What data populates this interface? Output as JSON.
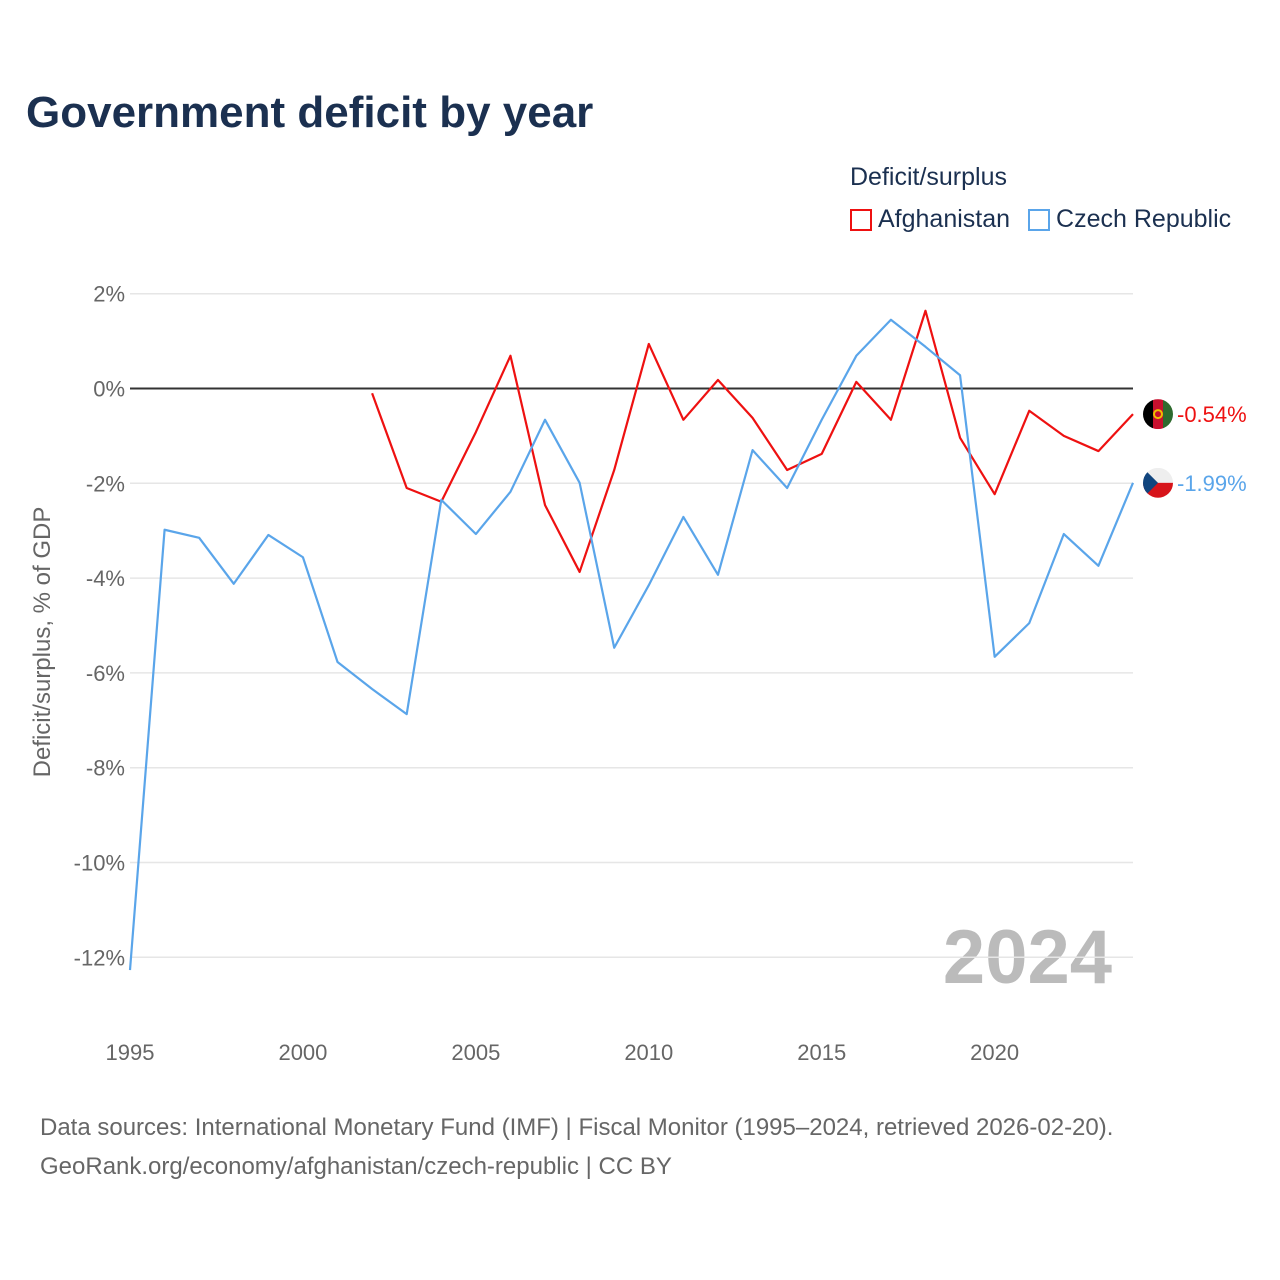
{
  "title": "Government deficit by year",
  "legend": {
    "title": "Deficit/surplus",
    "items": [
      {
        "name": "Afghanistan",
        "color": "#ee1111"
      },
      {
        "name": "Czech Republic",
        "color": "#5aa5ea"
      }
    ]
  },
  "source_line1": "Data sources: International Monetary Fund (IMF) | Fiscal Monitor (1995–2024, retrieved 2026-02-20).",
  "source_line2": "GeoRank.org/economy/afghanistan/czech-republic | CC BY",
  "chart_data": {
    "type": "line",
    "title": "Government deficit by year",
    "xlabel": "",
    "ylabel": "Deficit/surplus, % of GDP",
    "xlim": [
      1995,
      2024
    ],
    "ylim": [
      -13,
      2.2
    ],
    "x_ticks": [
      1995,
      2000,
      2005,
      2010,
      2015,
      2020
    ],
    "y_ticks": [
      2,
      0,
      -2,
      -4,
      -6,
      -8,
      -10,
      -12
    ],
    "y_tick_labels": [
      "2%",
      "0%",
      "-2%",
      "-4%",
      "-6%",
      "-8%",
      "-10%",
      "-12%"
    ],
    "grid": true,
    "watermark_year": "2024",
    "series": [
      {
        "name": "Afghanistan",
        "color": "#ee1111",
        "end_label": "-0.54%",
        "x": [
          2002,
          2003,
          2004,
          2005,
          2006,
          2007,
          2008,
          2009,
          2010,
          2011,
          2012,
          2013,
          2014,
          2015,
          2016,
          2017,
          2018,
          2019,
          2020,
          2021,
          2022,
          2023,
          2024
        ],
        "values": [
          -0.1,
          -2.1,
          -2.39,
          -0.92,
          0.69,
          -2.46,
          -3.87,
          -1.72,
          0.94,
          -0.66,
          0.18,
          -0.62,
          -1.72,
          -1.38,
          0.14,
          -0.66,
          1.64,
          -1.04,
          -2.23,
          -0.47,
          -1.0,
          -1.32,
          -0.54
        ]
      },
      {
        "name": "Czech Republic",
        "color": "#5aa5ea",
        "end_label": "-1.99%",
        "x": [
          1995,
          1996,
          1997,
          1998,
          1999,
          2000,
          2001,
          2002,
          2003,
          2004,
          2005,
          2006,
          2007,
          2008,
          2009,
          2010,
          2011,
          2012,
          2013,
          2014,
          2015,
          2016,
          2017,
          2018,
          2019,
          2020,
          2021,
          2022,
          2023,
          2024
        ],
        "values": [
          -12.27,
          -2.98,
          -3.15,
          -4.12,
          -3.09,
          -3.56,
          -5.77,
          -6.34,
          -6.87,
          -2.35,
          -3.07,
          -2.18,
          -0.66,
          -1.99,
          -5.47,
          -4.15,
          -2.71,
          -3.93,
          -1.3,
          -2.1,
          -0.66,
          0.69,
          1.45,
          0.88,
          0.28,
          -5.66,
          -4.95,
          -3.07,
          -3.74,
          -1.99
        ]
      }
    ]
  }
}
